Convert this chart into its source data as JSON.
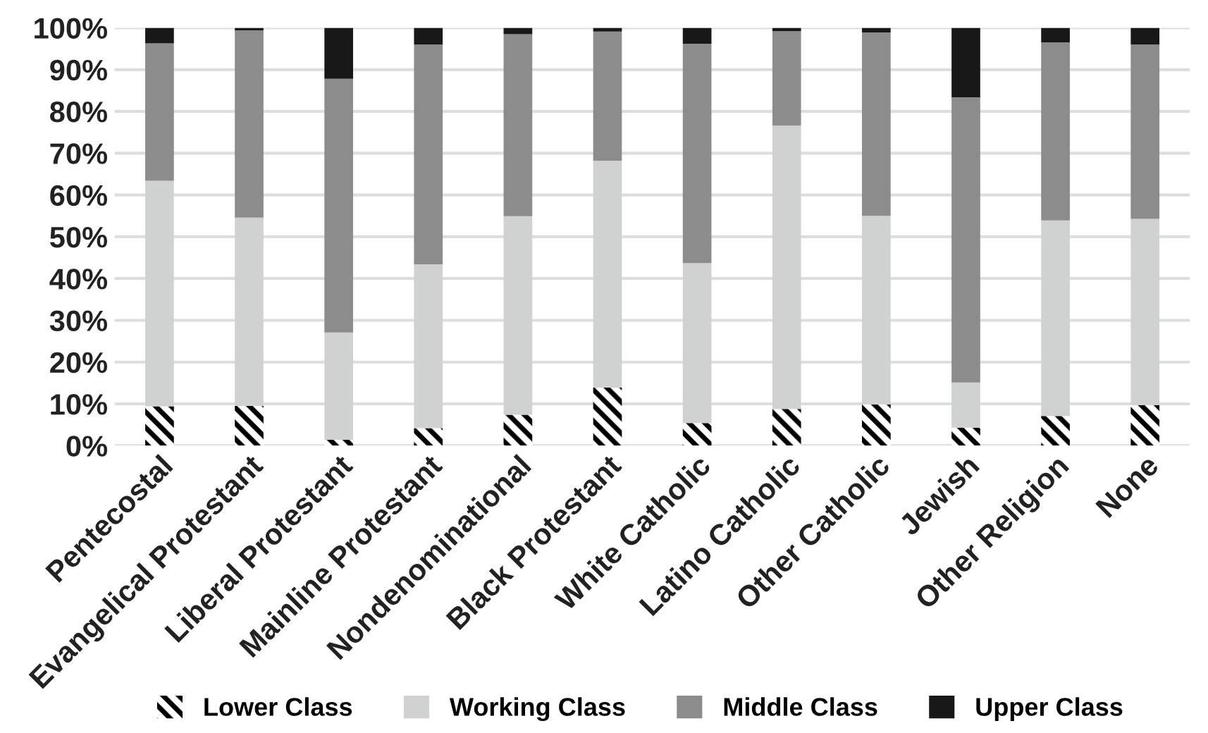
{
  "chart_data": {
    "type": "bar",
    "stacked": true,
    "categories": [
      "Pentecostal",
      "Evangelical Protestant",
      "Liberal Protestant",
      "Mainline Protestant",
      "Nondenominational",
      "Black Protestant",
      "White Catholic",
      "Latino Catholic",
      "Other Catholic",
      "Jewish",
      "Other Religion",
      "None"
    ],
    "series": [
      {
        "name": "Lower Class",
        "color": "#000000",
        "values": [
          9.4,
          9.5,
          1.4,
          4.2,
          7.4,
          13.9,
          5.4,
          8.8,
          9.9,
          4.3,
          7.1,
          9.7
        ]
      },
      {
        "name": "Working Class",
        "color": "#d0d2d1",
        "values": [
          54.0,
          45.1,
          25.7,
          39.2,
          47.5,
          54.3,
          38.3,
          67.8,
          45.1,
          10.8,
          46.8,
          44.6
        ]
      },
      {
        "name": "Middle Class",
        "color": "#8c8c8c",
        "values": [
          32.9,
          44.8,
          60.7,
          52.6,
          43.6,
          30.9,
          52.5,
          22.6,
          43.9,
          68.3,
          42.6,
          41.7
        ]
      },
      {
        "name": "Upper Class",
        "color": "#181818",
        "values": [
          3.7,
          0.6,
          12.2,
          4.0,
          1.5,
          0.9,
          3.8,
          0.8,
          1.1,
          16.6,
          3.5,
          4.0
        ]
      }
    ],
    "ylim": [
      0,
      100
    ],
    "yticks": [
      {
        "value": 0,
        "label": "0%"
      },
      {
        "value": 10,
        "label": "10%"
      },
      {
        "value": 20,
        "label": "20%"
      },
      {
        "value": 30,
        "label": "30%"
      },
      {
        "value": 40,
        "label": "40%"
      },
      {
        "value": 50,
        "label": "50%"
      },
      {
        "value": 60,
        "label": "60%"
      },
      {
        "value": 70,
        "label": "70%"
      },
      {
        "value": 80,
        "label": "80%"
      },
      {
        "value": 90,
        "label": "90%"
      },
      {
        "value": 100,
        "label": "100%"
      }
    ],
    "grid": "y",
    "legend": "bottom"
  }
}
